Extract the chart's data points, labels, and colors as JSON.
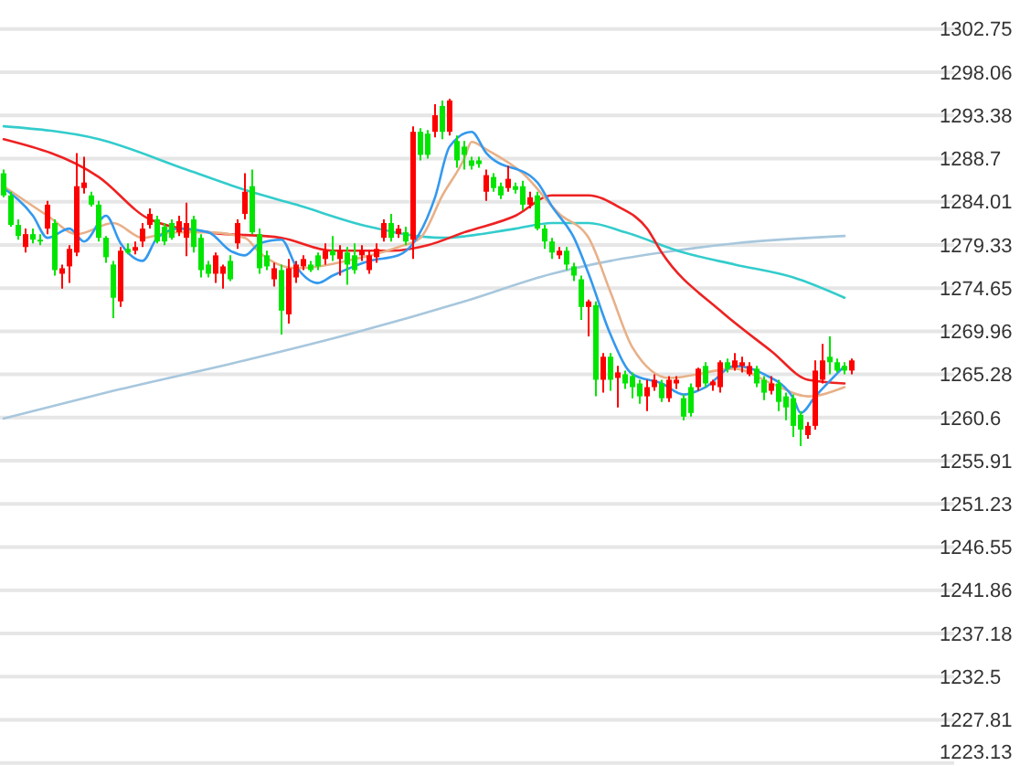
{
  "chart_data": {
    "type": "candlestick",
    "grid": "y",
    "tick_labels": "y",
    "categories": [
      null,
      null,
      null,
      null,
      null,
      null,
      null,
      null,
      null,
      null,
      null,
      null,
      null,
      null,
      null,
      null,
      null,
      null,
      null,
      null,
      null,
      null,
      null,
      null,
      null,
      null,
      null,
      null,
      null,
      null,
      null,
      null,
      null,
      null,
      null,
      null,
      null,
      null,
      null,
      null,
      null,
      null,
      null,
      null,
      null,
      null,
      null,
      null,
      null,
      null,
      null,
      null,
      null,
      null,
      null,
      null,
      null,
      null,
      null,
      null,
      null,
      null,
      null,
      null,
      null,
      null,
      null,
      null,
      null,
      null,
      null,
      null,
      null,
      null,
      null,
      null,
      null,
      null,
      null,
      null,
      null,
      null,
      null,
      null,
      null,
      null,
      null,
      null,
      null,
      null,
      null,
      null,
      null,
      null,
      null,
      null,
      null,
      null,
      null,
      null,
      null,
      null,
      null,
      null,
      null,
      null,
      null,
      null,
      null,
      null,
      null,
      null,
      null,
      null,
      null,
      null,
      null
    ],
    "ylim": [
      1222.8,
      1305.9
    ],
    "yticks": [
      1302.75,
      1298.06,
      1293.38,
      1288.7,
      1284.01,
      1279.33,
      1274.65,
      1269.96,
      1265.28,
      1260.6,
      1255.91,
      1251.23,
      1246.55,
      1241.86,
      1237.18,
      1232.5,
      1227.81,
      1223.13
    ],
    "ohlc": [
      [
        1287.1,
        1287.5,
        1284.5,
        1284.7
      ],
      [
        1284.7,
        1285.1,
        1281.3,
        1281.5
      ],
      [
        1281.5,
        1282.1,
        1279.9,
        1280.3
      ],
      [
        1279.1,
        1281.1,
        1278.5,
        1280.5
      ],
      [
        1280.5,
        1281.1,
        1279.5,
        1279.9
      ],
      [
        1279.9,
        1280.5,
        1279.3,
        1279.7
      ],
      [
        1281.1,
        1284.1,
        1280.5,
        1283.7
      ],
      [
        1281.7,
        1282.1,
        1276.0,
        1276.6
      ],
      [
        1276.2,
        1277.2,
        1274.6,
        1276.8
      ],
      [
        1277.0,
        1279.3,
        1275.2,
        1278.9
      ],
      [
        1278.5,
        1289.3,
        1278.1,
        1285.7
      ],
      [
        1285.5,
        1288.9,
        1284.9,
        1286.1
      ],
      [
        1284.7,
        1285.1,
        1283.5,
        1283.7
      ],
      [
        1283.7,
        1284.1,
        1279.7,
        1280.1
      ],
      [
        1280.1,
        1280.3,
        1277.4,
        1278.0
      ],
      [
        1277.2,
        1277.6,
        1271.4,
        1273.6
      ],
      [
        1273.2,
        1279.1,
        1272.6,
        1278.7
      ],
      [
        1278.9,
        1279.5,
        1278.3,
        1278.5
      ],
      [
        1278.7,
        1279.7,
        1278.3,
        1279.1
      ],
      [
        1279.7,
        1281.7,
        1279.1,
        1281.1
      ],
      [
        1281.5,
        1283.3,
        1281.1,
        1282.7
      ],
      [
        1282.1,
        1282.5,
        1279.5,
        1279.7
      ],
      [
        1281.3,
        1281.7,
        1279.3,
        1279.7
      ],
      [
        1281.7,
        1282.1,
        1279.9,
        1280.1
      ],
      [
        1280.7,
        1282.5,
        1280.3,
        1281.9
      ],
      [
        1280.1,
        1283.9,
        1278.1,
        1281.7
      ],
      [
        1282.1,
        1282.5,
        1278.5,
        1279.1
      ],
      [
        1280.1,
        1280.5,
        1275.8,
        1276.6
      ],
      [
        1277.2,
        1277.6,
        1275.8,
        1276.2
      ],
      [
        1276.2,
        1278.5,
        1275.2,
        1278.2
      ],
      [
        1276.2,
        1277.2,
        1274.6,
        1277.0
      ],
      [
        1277.6,
        1278.2,
        1275.4,
        1275.6
      ],
      [
        1279.5,
        1282.1,
        1278.9,
        1281.7
      ],
      [
        1282.7,
        1287.1,
        1282.1,
        1285.1
      ],
      [
        1285.7,
        1287.5,
        1280.5,
        1280.7
      ],
      [
        1280.5,
        1281.1,
        1276.2,
        1276.8
      ],
      [
        1278.2,
        1278.7,
        1276.6,
        1277.0
      ],
      [
        1275.6,
        1277.4,
        1274.8,
        1276.8
      ],
      [
        1276.6,
        1277.2,
        1269.6,
        1272.2
      ],
      [
        1271.8,
        1277.8,
        1270.8,
        1276.8
      ],
      [
        1275.8,
        1277.6,
        1275.2,
        1277.2
      ],
      [
        1277.0,
        1278.2,
        1276.6,
        1277.8
      ],
      [
        1277.2,
        1277.6,
        1276.4,
        1276.6
      ],
      [
        1278.2,
        1278.5,
        1276.6,
        1277.0
      ],
      [
        1277.8,
        1279.5,
        1277.2,
        1278.7
      ],
      [
        1278.7,
        1280.3,
        1277.6,
        1278.2
      ],
      [
        1277.8,
        1279.3,
        1276.0,
        1278.7
      ],
      [
        1278.5,
        1279.1,
        1275.0,
        1277.2
      ],
      [
        1278.2,
        1279.5,
        1276.2,
        1276.6
      ],
      [
        1278.2,
        1279.3,
        1277.6,
        1278.7
      ],
      [
        1276.6,
        1278.7,
        1276.2,
        1278.2
      ],
      [
        1278.0,
        1279.5,
        1277.4,
        1278.9
      ],
      [
        1280.1,
        1282.1,
        1279.7,
        1281.7
      ],
      [
        1281.7,
        1282.7,
        1279.7,
        1280.1
      ],
      [
        1280.5,
        1281.5,
        1280.1,
        1281.1
      ],
      [
        1280.7,
        1281.3,
        1279.3,
        1279.7
      ],
      [
        1279.9,
        1292.2,
        1277.8,
        1291.6
      ],
      [
        1291.6,
        1292.0,
        1288.5,
        1289.1
      ],
      [
        1291.4,
        1291.8,
        1288.7,
        1289.1
      ],
      [
        1291.6,
        1294.6,
        1291.0,
        1293.4
      ],
      [
        1294.4,
        1295.0,
        1290.8,
        1291.6
      ],
      [
        1291.6,
        1295.2,
        1291.2,
        1295.0
      ],
      [
        1290.6,
        1291.2,
        1287.7,
        1288.5
      ],
      [
        1290.0,
        1290.6,
        1287.5,
        1289.1
      ],
      [
        1288.5,
        1288.9,
        1287.5,
        1287.9
      ],
      [
        1288.5,
        1288.9,
        1287.7,
        1288.1
      ],
      [
        1285.1,
        1287.5,
        1284.1,
        1286.9
      ],
      [
        1286.7,
        1287.1,
        1285.1,
        1285.5
      ],
      [
        1285.7,
        1286.1,
        1284.3,
        1284.7
      ],
      [
        1285.5,
        1287.9,
        1285.1,
        1286.5
      ],
      [
        1285.7,
        1286.1,
        1284.9,
        1285.3
      ],
      [
        1285.7,
        1286.3,
        1283.1,
        1283.7
      ],
      [
        1283.7,
        1285.1,
        1283.3,
        1284.5
      ],
      [
        1284.7,
        1285.1,
        1280.9,
        1281.1
      ],
      [
        1281.1,
        1281.5,
        1278.9,
        1279.7
      ],
      [
        1279.7,
        1280.1,
        1277.8,
        1278.5
      ],
      [
        1278.2,
        1279.1,
        1277.8,
        1278.7
      ],
      [
        1278.7,
        1279.1,
        1276.6,
        1277.2
      ],
      [
        1277.0,
        1277.4,
        1275.4,
        1276.0
      ],
      [
        1275.6,
        1276.0,
        1271.2,
        1272.6
      ],
      [
        1272.6,
        1273.4,
        1269.4,
        1273.2
      ],
      [
        1272.8,
        1273.2,
        1262.9,
        1264.7
      ],
      [
        1264.7,
        1267.6,
        1263.3,
        1267.2
      ],
      [
        1267.2,
        1267.6,
        1263.5,
        1264.7
      ],
      [
        1264.9,
        1266.2,
        1261.7,
        1265.5
      ],
      [
        1265.3,
        1265.7,
        1263.7,
        1264.3
      ],
      [
        1265.1,
        1265.5,
        1262.7,
        1263.9
      ],
      [
        1264.3,
        1264.7,
        1262.1,
        1262.9
      ],
      [
        1262.9,
        1264.7,
        1261.3,
        1263.9
      ],
      [
        1263.9,
        1265.3,
        1263.5,
        1264.7
      ],
      [
        1264.3,
        1264.7,
        1262.3,
        1262.7
      ],
      [
        1262.7,
        1265.1,
        1262.3,
        1264.7
      ],
      [
        1264.3,
        1265.1,
        1263.7,
        1264.7
      ],
      [
        1262.7,
        1263.1,
        1260.3,
        1260.7
      ],
      [
        1263.9,
        1264.3,
        1260.7,
        1261.1
      ],
      [
        1263.9,
        1266.0,
        1263.5,
        1265.9
      ],
      [
        1266.2,
        1266.6,
        1263.9,
        1264.3
      ],
      [
        1264.1,
        1264.7,
        1263.5,
        1264.5
      ],
      [
        1263.9,
        1266.8,
        1263.3,
        1266.6
      ],
      [
        1266.6,
        1267.0,
        1265.5,
        1265.9
      ],
      [
        1266.0,
        1267.6,
        1265.7,
        1266.8
      ],
      [
        1266.2,
        1267.2,
        1265.5,
        1266.6
      ],
      [
        1265.3,
        1266.6,
        1265.1,
        1266.2
      ],
      [
        1265.9,
        1266.2,
        1263.9,
        1264.3
      ],
      [
        1264.7,
        1265.1,
        1262.5,
        1263.3
      ],
      [
        1263.5,
        1265.1,
        1263.1,
        1264.3
      ],
      [
        1264.3,
        1264.7,
        1261.3,
        1262.3
      ],
      [
        1262.9,
        1263.3,
        1260.3,
        1261.7
      ],
      [
        1262.7,
        1263.1,
        1258.5,
        1259.7
      ],
      [
        1260.9,
        1261.3,
        1257.5,
        1259.3
      ],
      [
        1258.7,
        1260.1,
        1258.3,
        1259.7
      ],
      [
        1259.7,
        1266.8,
        1259.3,
        1265.7
      ],
      [
        1264.7,
        1268.6,
        1264.3,
        1266.8
      ],
      [
        1267.2,
        1269.4,
        1265.3,
        1266.6
      ],
      [
        1266.6,
        1267.0,
        1265.5,
        1265.7
      ],
      [
        1266.2,
        1266.6,
        1265.3,
        1265.7
      ],
      [
        1265.7,
        1267.0,
        1265.3,
        1266.8
      ]
    ],
    "series": [
      {
        "type": "line",
        "color": "#a7c7dd",
        "values": [
          1260.5,
          null,
          null,
          null,
          null,
          null,
          null,
          null,
          null,
          null,
          null,
          null,
          null,
          null,
          null,
          1263.5,
          null,
          null,
          null,
          null,
          null,
          null,
          null,
          null,
          null,
          null,
          null,
          null,
          null,
          null,
          null,
          null,
          null,
          1266.8,
          null,
          null,
          null,
          null,
          null,
          null,
          null,
          null,
          null,
          null,
          null,
          null,
          null,
          null,
          1269.8,
          null,
          null,
          null,
          null,
          null,
          null,
          null,
          null,
          null,
          null,
          null,
          null,
          null,
          null,
          1273.2,
          null,
          null,
          null,
          null,
          null,
          null,
          null,
          null,
          null,
          null,
          null,
          1276.2,
          null,
          null,
          null,
          null,
          null,
          null,
          null,
          1277.6,
          null,
          null,
          null,
          null,
          null,
          null,
          1278.5,
          null,
          null,
          null,
          null,
          null,
          null,
          null,
          null,
          null,
          1279.5,
          null,
          null,
          null,
          null,
          null,
          null,
          null,
          null,
          null,
          null,
          null,
          null,
          null,
          null,
          1280.3,
          null
        ]
      },
      {
        "type": "line",
        "color": "#33cccc",
        "values": [
          1292.2,
          null,
          null,
          null,
          null,
          null,
          null,
          null,
          null,
          null,
          null,
          null,
          null,
          1290.8,
          null,
          null,
          null,
          null,
          null,
          null,
          null,
          null,
          null,
          null,
          null,
          1287.5,
          null,
          null,
          null,
          null,
          null,
          null,
          null,
          1285.3,
          null,
          null,
          null,
          null,
          null,
          null,
          1283.7,
          null,
          null,
          null,
          null,
          null,
          null,
          null,
          null,
          null,
          1281.3,
          null,
          null,
          null,
          null,
          null,
          null,
          null,
          null,
          null,
          1280.1,
          null,
          null,
          null,
          null,
          null,
          null,
          null,
          null,
          null,
          1281.1,
          null,
          null,
          null,
          null,
          1281.7,
          null,
          null,
          null,
          null,
          1281.7,
          null,
          null,
          null,
          null,
          1280.7,
          null,
          null,
          null,
          null,
          null,
          null,
          null,
          1278.5,
          null,
          null,
          null,
          null,
          null,
          null,
          1277.2,
          null,
          null,
          null,
          null,
          null,
          null,
          null,
          1275.8,
          null,
          null,
          null,
          null,
          null,
          null,
          1273.6,
          null
        ]
      },
      {
        "type": "line",
        "color": "#ee2222",
        "values": [
          1290.8,
          null,
          null,
          null,
          null,
          null,
          null,
          null,
          null,
          null,
          null,
          null,
          null,
          1286.7,
          null,
          null,
          null,
          null,
          null,
          null,
          1282.1,
          null,
          null,
          null,
          null,
          null,
          null,
          null,
          1280.7,
          null,
          null,
          null,
          null,
          null,
          null,
          null,
          null,
          null,
          1280.1,
          null,
          null,
          null,
          null,
          null,
          null,
          1278.7,
          null,
          null,
          null,
          null,
          null,
          null,
          null,
          1278.7,
          null,
          null,
          null,
          null,
          1279.3,
          null,
          null,
          null,
          null,
          1280.7,
          null,
          null,
          null,
          null,
          null,
          null,
          1282.5,
          null,
          null,
          null,
          null,
          1284.7,
          null,
          null,
          null,
          null,
          1284.7,
          null,
          null,
          null,
          1283.5,
          null,
          null,
          null,
          1281.1,
          null,
          1278.5,
          null,
          null,
          null,
          null,
          null,
          null,
          null,
          1272.2,
          null,
          null,
          null,
          null,
          null,
          null,
          1267.8,
          null,
          null,
          null,
          null,
          1264.7,
          null,
          null,
          null,
          null,
          1264.3,
          null
        ]
      },
      {
        "type": "line",
        "color": "#e8b088",
        "values": [
          1285.7,
          null,
          null,
          null,
          null,
          null,
          1282.5,
          null,
          null,
          null,
          1280.5,
          null,
          null,
          null,
          null,
          1281.7,
          null,
          null,
          null,
          1280.1,
          null,
          null,
          null,
          1280.7,
          null,
          null,
          null,
          null,
          1280.7,
          null,
          null,
          null,
          null,
          1280.1,
          null,
          1278.5,
          null,
          null,
          null,
          null,
          1276.8,
          null,
          null,
          null,
          null,
          null,
          null,
          null,
          1277.8,
          null,
          null,
          null,
          null,
          null,
          1279.1,
          null,
          null,
          1280.1,
          null,
          null,
          1284.7,
          null,
          null,
          1288.7,
          1290.5,
          null,
          1289.7,
          null,
          null,
          null,
          null,
          1287.1,
          null,
          null,
          null,
          null,
          1282.7,
          null,
          null,
          null,
          1280.1,
          null,
          null,
          1274.2,
          null,
          null,
          1268.2,
          null,
          null,
          null,
          null,
          1264.9,
          null,
          null,
          null,
          null,
          null,
          null,
          null,
          null,
          1265.9,
          null,
          null,
          null,
          null,
          1264.3,
          null,
          null,
          null,
          null,
          1262.9,
          null,
          null,
          null,
          null,
          1263.9,
          null
        ]
      },
      {
        "type": "line",
        "color": "#3399ee",
        "values": [
          1285.5,
          null,
          null,
          null,
          1282.5,
          null,
          1280.1,
          null,
          null,
          1281.1,
          null,
          1279.7,
          null,
          null,
          1282.5,
          null,
          1279.5,
          null,
          null,
          1277.6,
          null,
          1280.1,
          null,
          null,
          1281.1,
          null,
          null,
          null,
          1280.7,
          null,
          null,
          1278.7,
          null,
          1278.2,
          null,
          1279.5,
          null,
          null,
          1279.9,
          null,
          1277.0,
          null,
          null,
          1275.2,
          null,
          1276.0,
          null,
          null,
          null,
          null,
          1277.6,
          null,
          null,
          null,
          1278.2,
          null,
          1279.5,
          null,
          null,
          1284.5,
          null,
          1290.0,
          null,
          null,
          1291.6,
          null,
          1289.3,
          null,
          null,
          null,
          null,
          null,
          null,
          1286.1,
          null,
          1283.5,
          null,
          null,
          1280.1,
          null,
          1276.2,
          null,
          null,
          1269.6,
          null,
          null,
          1265.3,
          null,
          null,
          null,
          1264.3,
          null,
          null,
          1263.1,
          null,
          null,
          1263.9,
          null,
          null,
          null,
          1266.2,
          null,
          null,
          null,
          1265.3,
          null,
          null,
          null,
          1262.7,
          1261.1,
          null,
          1262.9,
          null,
          null,
          null,
          1266.2,
          null
        ]
      }
    ]
  }
}
